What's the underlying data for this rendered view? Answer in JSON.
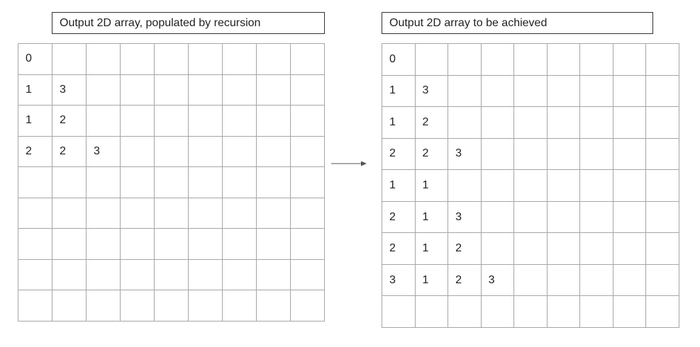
{
  "left_panel": {
    "title": "Output 2D array, populated by recursion",
    "rows": [
      [
        "0",
        "",
        "",
        "",
        "",
        "",
        "",
        "",
        ""
      ],
      [
        "1",
        "3",
        "",
        "",
        "",
        "",
        "",
        "",
        ""
      ],
      [
        "1",
        "2",
        "",
        "",
        "",
        "",
        "",
        "",
        ""
      ],
      [
        "2",
        "2",
        "3",
        "",
        "",
        "",
        "",
        "",
        ""
      ],
      [
        "",
        "",
        "",
        "",
        "",
        "",
        "",
        "",
        ""
      ],
      [
        "",
        "",
        "",
        "",
        "",
        "",
        "",
        "",
        ""
      ],
      [
        "",
        "",
        "",
        "",
        "",
        "",
        "",
        "",
        ""
      ],
      [
        "",
        "",
        "",
        "",
        "",
        "",
        "",
        "",
        ""
      ],
      [
        "",
        "",
        "",
        "",
        "",
        "",
        "",
        "",
        ""
      ]
    ]
  },
  "right_panel": {
    "title": "Output 2D array to be achieved",
    "rows": [
      [
        "0",
        "",
        "",
        "",
        "",
        "",
        "",
        "",
        ""
      ],
      [
        "1",
        "3",
        "",
        "",
        "",
        "",
        "",
        "",
        ""
      ],
      [
        "1",
        "2",
        "",
        "",
        "",
        "",
        "",
        "",
        ""
      ],
      [
        "2",
        "2",
        "3",
        "",
        "",
        "",
        "",
        "",
        ""
      ],
      [
        "1",
        "1",
        "",
        "",
        "",
        "",
        "",
        "",
        ""
      ],
      [
        "2",
        "1",
        "3",
        "",
        "",
        "",
        "",
        "",
        ""
      ],
      [
        "2",
        "1",
        "2",
        "",
        "",
        "",
        "",
        "",
        ""
      ],
      [
        "3",
        "1",
        "2",
        "3",
        "",
        "",
        "",
        "",
        ""
      ],
      [
        "",
        "",
        "",
        "",
        "",
        "",
        "",
        "",
        ""
      ]
    ]
  },
  "colors": {
    "grid_line": "#a6a6a6",
    "box_border": "#333333",
    "arrow": "#555555",
    "text": "#222222"
  },
  "icons": {
    "connector": "right-arrow-icon"
  }
}
